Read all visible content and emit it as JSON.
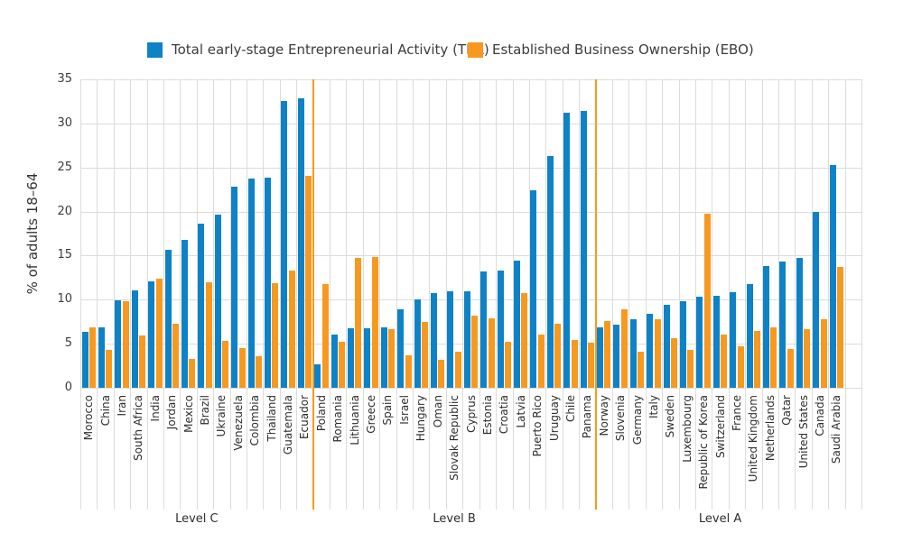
{
  "legend": {
    "tea_label": "Total early-stage Entrepreneurial Activity (TEA)",
    "ebo_label": "Established Business Ownership (EBO)"
  },
  "colors": {
    "tea_blue": "#0e82c6",
    "ebo_orange": "#f8991f",
    "separator_orange": "#f8991f",
    "gridline_gray": "#dcdcdc",
    "text_dark": "#2e2e2e"
  },
  "chart_data": {
    "type": "bar",
    "title": "",
    "xlabel": "",
    "ylabel": "% of adults 18–64",
    "ylim": [
      0,
      35
    ],
    "yticks": [
      0,
      5,
      10,
      15,
      20,
      25,
      30,
      35
    ],
    "grid": true,
    "legend_position": "top",
    "categories": [
      "Morocco",
      "China",
      "Iran",
      "South Africa",
      "India",
      "Jordan",
      "Mexico",
      "Brazil",
      "Ukraine",
      "Venezuela",
      "Colombia",
      "Thailand",
      "Guatemala",
      "Ecuador",
      "Poland",
      "Romania",
      "Lithuania",
      "Greece",
      "Spain",
      "Israel",
      "Hungary",
      "Oman",
      "Slovak Republic",
      "Cyprus",
      "Estonia",
      "Croatia",
      "Latvia",
      "Puerto Rico",
      "Uruguay",
      "Chile",
      "Panama",
      "Norway",
      "Slovenia",
      "Germany",
      "Italy",
      "Sweden",
      "Luxembourg",
      "Republic of Korea",
      "Switzerland",
      "France",
      "United Kingdom",
      "Netherlands",
      "Qatar",
      "United States",
      "Canada",
      "Saudi Arabia"
    ],
    "series": [
      {
        "name": "Total early-stage Entrepreneurial Activity (TEA)",
        "color": "#0e82c6",
        "values": [
          6.3,
          6.9,
          9.9,
          11.1,
          12.1,
          15.7,
          16.8,
          18.6,
          19.6,
          22.8,
          23.7,
          23.8,
          32.5,
          32.8,
          2.7,
          6.0,
          6.8,
          6.8,
          6.9,
          8.9,
          10.0,
          10.7,
          10.9,
          11.0,
          13.2,
          13.3,
          14.4,
          22.4,
          26.3,
          31.2,
          31.4,
          6.9,
          7.2,
          7.8,
          8.4,
          9.4,
          9.8,
          10.3,
          10.4,
          10.8,
          11.8,
          13.8,
          14.3,
          14.7,
          20.0,
          25.3
        ]
      },
      {
        "name": "Established Business Ownership (EBO)",
        "color": "#f8991f",
        "values": [
          6.9,
          4.3,
          9.8,
          5.9,
          12.4,
          7.3,
          3.3,
          12.0,
          5.3,
          4.5,
          3.6,
          11.9,
          13.3,
          24.1,
          11.8,
          5.2,
          14.7,
          14.8,
          6.7,
          3.7,
          7.5,
          3.2,
          4.1,
          8.2,
          7.9,
          5.2,
          10.7,
          6.0,
          7.3,
          5.4,
          5.1,
          7.6,
          8.9,
          4.1,
          7.8,
          5.6,
          4.3,
          19.8,
          6.0,
          4.7,
          6.4,
          6.9,
          4.4,
          6.7,
          7.8,
          13.7
        ]
      }
    ],
    "groups": [
      {
        "label": "Level C",
        "count": 14
      },
      {
        "label": "Level B",
        "count": 17
      },
      {
        "label": "Level A",
        "count": 15
      }
    ]
  }
}
